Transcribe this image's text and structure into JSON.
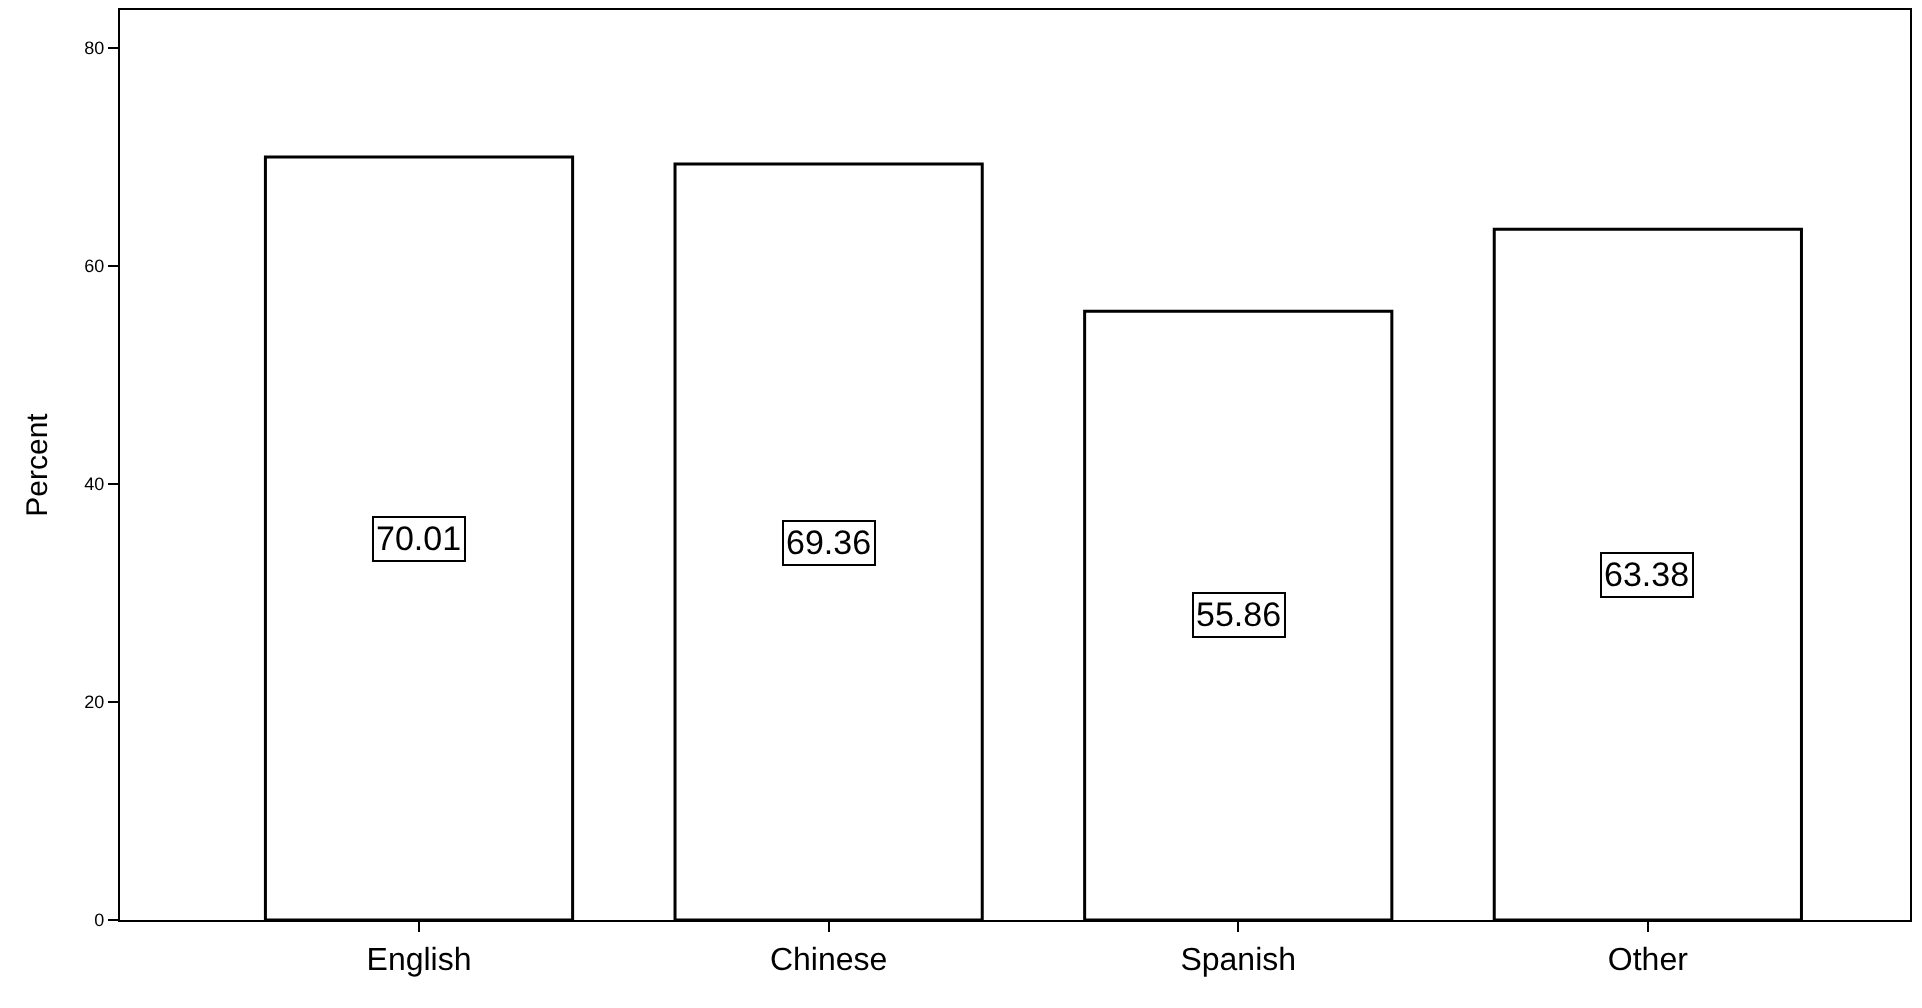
{
  "chart_data": {
    "type": "bar",
    "ylabel": "Percent",
    "categories": [
      "English",
      "Chinese",
      "Spanish",
      "Other"
    ],
    "values": [
      70.01,
      69.36,
      55.86,
      63.38
    ],
    "color": "#ffffff",
    "ylim": [
      0,
      83.5
    ],
    "yticks": [
      0,
      20,
      40,
      60,
      80
    ],
    "grid": false,
    "data_labels": true
  }
}
